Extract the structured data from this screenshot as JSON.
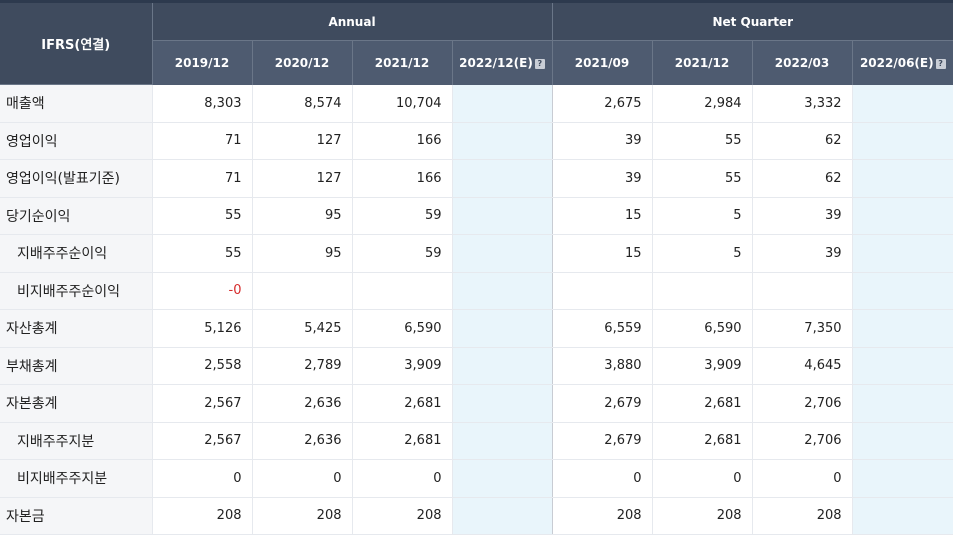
{
  "header": {
    "corner": "IFRS(연결)",
    "annual_label": "Annual",
    "quarter_label": "Net Quarter",
    "annual_periods": [
      "2019/12",
      "2020/12",
      "2021/12",
      "2022/12(E)"
    ],
    "quarter_periods": [
      "2021/09",
      "2021/12",
      "2022/03",
      "2022/06(E)"
    ],
    "help_icon": "?"
  },
  "rows": [
    {
      "label": "매출액",
      "annual": [
        "8,303",
        "8,574",
        "10,704",
        ""
      ],
      "quarter": [
        "2,675",
        "2,984",
        "3,332",
        ""
      ]
    },
    {
      "label": "영업이익",
      "annual": [
        "71",
        "127",
        "166",
        ""
      ],
      "quarter": [
        "39",
        "55",
        "62",
        ""
      ]
    },
    {
      "label": "영업이익(발표기준)",
      "annual": [
        "71",
        "127",
        "166",
        ""
      ],
      "quarter": [
        "39",
        "55",
        "62",
        ""
      ]
    },
    {
      "label": "당기순이익",
      "annual": [
        "55",
        "95",
        "59",
        ""
      ],
      "quarter": [
        "15",
        "5",
        "39",
        ""
      ]
    },
    {
      "label": "지배주주순이익",
      "annual": [
        "55",
        "95",
        "59",
        ""
      ],
      "quarter": [
        "15",
        "5",
        "39",
        ""
      ]
    },
    {
      "label": "비지배주주순이익",
      "annual": [
        "-0",
        "",
        "",
        ""
      ],
      "quarter": [
        "",
        "",
        "",
        ""
      ]
    },
    {
      "label": "자산총계",
      "annual": [
        "5,126",
        "5,425",
        "6,590",
        ""
      ],
      "quarter": [
        "6,559",
        "6,590",
        "7,350",
        ""
      ]
    },
    {
      "label": "부채총계",
      "annual": [
        "2,558",
        "2,789",
        "3,909",
        ""
      ],
      "quarter": [
        "3,880",
        "3,909",
        "4,645",
        ""
      ]
    },
    {
      "label": "자본총계",
      "annual": [
        "2,567",
        "2,636",
        "2,681",
        ""
      ],
      "quarter": [
        "2,679",
        "2,681",
        "2,706",
        ""
      ]
    },
    {
      "label": "지배주주지분",
      "annual": [
        "2,567",
        "2,636",
        "2,681",
        ""
      ],
      "quarter": [
        "2,679",
        "2,681",
        "2,706",
        ""
      ]
    },
    {
      "label": "비지배주주지분",
      "annual": [
        "0",
        "0",
        "0",
        ""
      ],
      "quarter": [
        "0",
        "0",
        "0",
        ""
      ]
    },
    {
      "label": "자본금",
      "annual": [
        "208",
        "208",
        "208",
        ""
      ],
      "quarter": [
        "208",
        "208",
        "208",
        ""
      ]
    }
  ],
  "colors": {
    "header_bg": "#3f4b5e",
    "subheader_bg": "#4e5b70",
    "estimate_bg": "#e9f5fb",
    "negative": "#d62b2b"
  }
}
